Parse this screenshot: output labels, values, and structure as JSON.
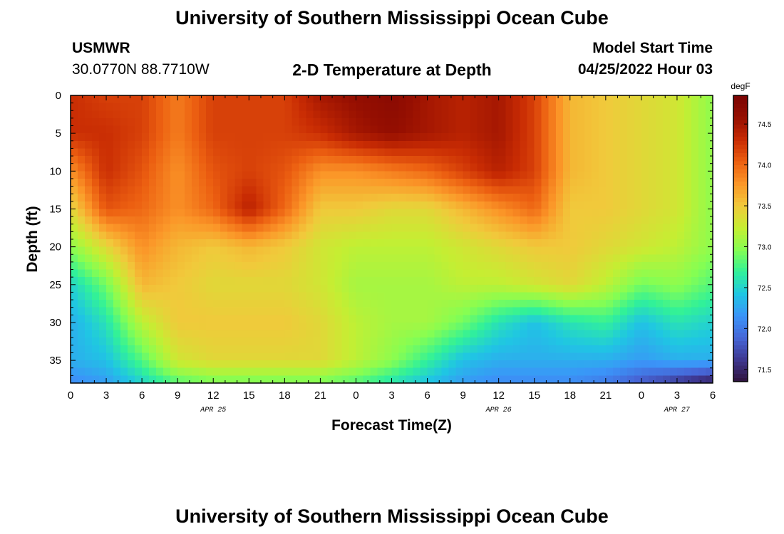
{
  "header": {
    "title": "University of Southern Mississippi Ocean Cube",
    "station": "USMWR",
    "coords": "30.0770N  88.7710W",
    "subtitle": "2-D Temperature at Depth",
    "model_label": "Model Start Time",
    "model_time": "04/25/2022 Hour 03"
  },
  "footer": {
    "title": "University of Southern Mississippi Ocean Cube"
  },
  "colors": {
    "colormap": "turbo",
    "colormap_stops": [
      "#30123b",
      "#3e378f",
      "#4666d7",
      "#3b94f8",
      "#1fc6e3",
      "#31f199",
      "#86fe52",
      "#c5ee32",
      "#f1c93b",
      "#fb9628",
      "#ec5f11",
      "#c82b03",
      "#960f01",
      "#7a0403"
    ]
  },
  "chart_data": {
    "type": "heatmap",
    "xlabel": "Forecast Time(Z)",
    "ylabel": "Depth (ft)",
    "x_tick_labels": [
      "0",
      "3",
      "6",
      "9",
      "12",
      "15",
      "18",
      "21",
      "0",
      "3",
      "6",
      "9",
      "12",
      "15",
      "18",
      "21",
      "0",
      "3",
      "6"
    ],
    "x_range_hours": [
      0,
      54
    ],
    "date_labels": [
      {
        "hour": 12,
        "text": "APR 25"
      },
      {
        "hour": 36,
        "text": "APR 26"
      },
      {
        "hour": 51,
        "text": "APR 27"
      }
    ],
    "ylim": [
      0,
      38
    ],
    "y_ticks": [
      0,
      5,
      10,
      15,
      20,
      25,
      30,
      35
    ],
    "y_tick_labels": [
      "0",
      "5",
      "10",
      "15",
      "20",
      "25",
      "30",
      "35"
    ],
    "y_inverted": true,
    "colorbar": {
      "unit": "degF",
      "range": [
        71.35,
        74.85
      ],
      "ticks": [
        71.5,
        72.0,
        72.5,
        73.0,
        73.5,
        74.0,
        74.5
      ],
      "tick_labels": [
        "71.5",
        "72.0",
        "72.5",
        "73.0",
        "73.5",
        "74.0",
        "74.5"
      ]
    },
    "grid_hours": [
      0,
      3,
      6,
      9,
      12,
      15,
      18,
      21,
      24,
      27,
      30,
      33,
      36,
      39,
      42,
      45,
      48,
      51,
      54
    ],
    "grid_depths": [
      0,
      5,
      10,
      15,
      20,
      25,
      30,
      35,
      38
    ],
    "values": [
      [
        74.3,
        74.2,
        74.2,
        73.9,
        74.2,
        74.2,
        74.2,
        74.5,
        74.6,
        74.7,
        74.5,
        74.4,
        74.5,
        74.2,
        73.6,
        73.5,
        73.4,
        73.3,
        73.0
      ],
      [
        74.3,
        74.3,
        74.2,
        73.9,
        74.2,
        74.2,
        74.2,
        74.3,
        74.5,
        74.6,
        74.5,
        74.4,
        74.5,
        74.2,
        73.6,
        73.5,
        73.4,
        73.3,
        73.0
      ],
      [
        73.8,
        74.3,
        74.1,
        73.8,
        74.1,
        74.2,
        74.1,
        73.8,
        73.8,
        73.9,
        74.0,
        74.2,
        74.4,
        74.2,
        73.6,
        73.5,
        73.4,
        73.3,
        73.0
      ],
      [
        73.4,
        74.1,
        74.0,
        73.8,
        74.0,
        74.4,
        74.0,
        73.5,
        73.5,
        73.4,
        73.4,
        73.6,
        73.8,
        74.0,
        73.5,
        73.5,
        73.4,
        73.3,
        73.0
      ],
      [
        73.0,
        73.4,
        73.8,
        73.6,
        73.5,
        73.6,
        73.5,
        73.3,
        73.2,
        73.2,
        73.2,
        73.3,
        73.4,
        73.5,
        73.5,
        73.4,
        73.3,
        73.2,
        73.0
      ],
      [
        72.5,
        72.9,
        73.6,
        73.5,
        73.4,
        73.4,
        73.4,
        73.3,
        73.1,
        73.1,
        73.1,
        73.2,
        73.2,
        73.3,
        73.4,
        73.2,
        72.9,
        73.0,
        72.8
      ],
      [
        72.3,
        72.6,
        73.2,
        73.5,
        73.5,
        73.5,
        73.5,
        73.4,
        73.2,
        73.1,
        73.1,
        72.9,
        72.6,
        72.4,
        72.6,
        72.7,
        72.4,
        72.6,
        72.5
      ],
      [
        72.3,
        72.4,
        72.8,
        73.3,
        73.4,
        73.4,
        73.4,
        73.4,
        73.2,
        73.0,
        72.7,
        72.4,
        72.3,
        72.3,
        72.3,
        72.3,
        72.2,
        72.3,
        72.3
      ],
      [
        72.1,
        72.2,
        72.5,
        72.8,
        72.9,
        72.9,
        72.9,
        72.9,
        72.8,
        72.6,
        72.4,
        72.2,
        72.1,
        72.1,
        72.1,
        72.0,
        71.8,
        71.6,
        71.4
      ]
    ]
  }
}
